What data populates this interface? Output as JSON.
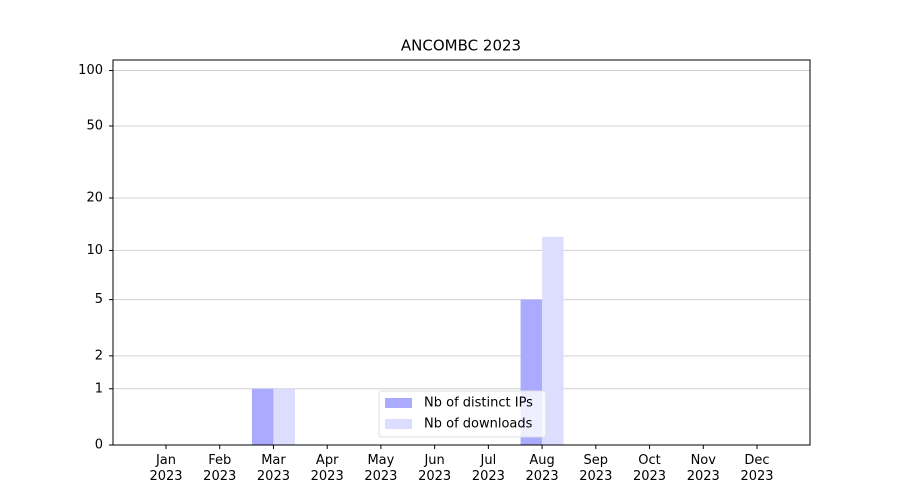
{
  "chart_data": {
    "type": "bar",
    "title": "ANCOMBC 2023",
    "scale": "log1p",
    "categories": [
      "Jan\n2023",
      "Feb\n2023",
      "Mar\n2023",
      "Apr\n2023",
      "May\n2023",
      "Jun\n2023",
      "Jul\n2023",
      "Aug\n2023",
      "Sep\n2023",
      "Oct\n2023",
      "Nov\n2023",
      "Dec\n2023"
    ],
    "series": [
      {
        "name": "Nb of distinct IPs",
        "color": "#aaaaff",
        "values": [
          0,
          0,
          1,
          0,
          0,
          0,
          0,
          5,
          0,
          0,
          0,
          0
        ]
      },
      {
        "name": "Nb of downloads",
        "color": "#ddddff",
        "values": [
          0,
          0,
          1,
          0,
          0,
          0,
          0,
          12,
          0,
          0,
          0,
          0
        ]
      }
    ],
    "ylim": [
      0,
      114
    ],
    "yticks": [
      0,
      1,
      2,
      5,
      10,
      20,
      50,
      100
    ],
    "grid": true,
    "legend": "lower center"
  }
}
